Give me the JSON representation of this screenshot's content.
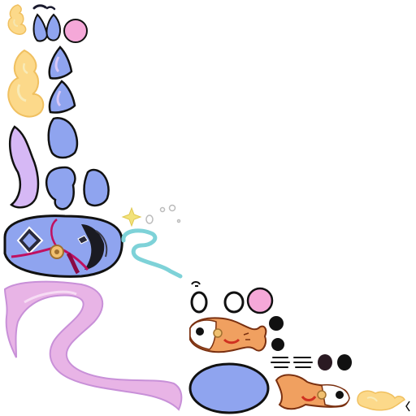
{
  "sheet": {
    "kind": "sprite-atlas",
    "background": "#ffffff",
    "pieces": [
      {
        "name": "flame-small-sprite",
        "color": "#fcd98a"
      },
      {
        "name": "flame-large-sprite",
        "color": "#fcd98a"
      },
      {
        "name": "brow-sprite",
        "color": "#1a1a2e"
      },
      {
        "name": "ear-left-sprite",
        "color": "#8fa4ef"
      },
      {
        "name": "ear-right-sprite",
        "color": "#8fa4ef"
      },
      {
        "name": "pink-dot-sprite",
        "color": "#f5a8d8"
      },
      {
        "name": "ear-tip-left-sprite",
        "color": "#8fa4ef"
      },
      {
        "name": "ear-tip-right-sprite",
        "color": "#8fa4ef"
      },
      {
        "name": "lavender-tail-sprite",
        "color": "#d6b8f5"
      },
      {
        "name": "paw-left-sprite",
        "color": "#8fa4ef"
      },
      {
        "name": "paw-mid-sprite",
        "color": "#8fa4ef"
      },
      {
        "name": "paw-right-sprite",
        "color": "#8fa4ef"
      },
      {
        "name": "sparkle-sprite",
        "color": "#f2e27a"
      },
      {
        "name": "bubbles-sprite",
        "color": "#cccccc"
      },
      {
        "name": "body-with-bow-sprite",
        "color": "#8fa4ef"
      },
      {
        "name": "teal-swirl-sprite",
        "color": "#7ed2d8"
      },
      {
        "name": "pink-ribbon-sprite",
        "color": "#e8b4e6"
      },
      {
        "name": "eye-set-sprite",
        "color": "#1a1a1a"
      },
      {
        "name": "koi-fish-sprite",
        "color": "#f0a060"
      },
      {
        "name": "black-dots-sprite",
        "color": "#111111"
      },
      {
        "name": "speed-lines-sprite",
        "color": "#111111"
      },
      {
        "name": "blue-oval-sprite",
        "color": "#8fa4ef"
      },
      {
        "name": "koi-fish-sprite-2",
        "color": "#f0a060"
      },
      {
        "name": "flame-corner-sprite",
        "color": "#fcd98a"
      }
    ]
  }
}
